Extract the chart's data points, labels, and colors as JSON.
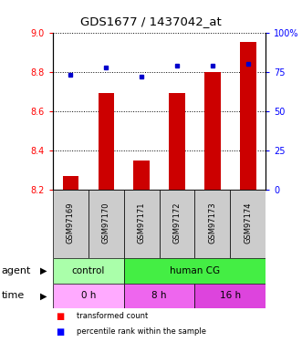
{
  "title": "GDS1677 / 1437042_at",
  "samples": [
    "GSM97169",
    "GSM97170",
    "GSM97171",
    "GSM97172",
    "GSM97173",
    "GSM97174"
  ],
  "bar_values": [
    8.27,
    8.69,
    8.35,
    8.69,
    8.8,
    8.95
  ],
  "percentile_values": [
    73,
    78,
    72,
    79,
    79,
    80
  ],
  "ylim_left": [
    8.2,
    9.0
  ],
  "ylim_right": [
    0,
    100
  ],
  "yticks_left": [
    8.2,
    8.4,
    8.6,
    8.8,
    9.0
  ],
  "yticks_right": [
    0,
    25,
    50,
    75,
    100
  ],
  "ytick_labels_right": [
    "0",
    "25",
    "50",
    "75",
    "100%"
  ],
  "bar_color": "#cc0000",
  "percentile_color": "#0000cc",
  "agent_row": [
    {
      "label": "control",
      "start": 0,
      "end": 2,
      "color": "#aaffaa"
    },
    {
      "label": "human CG",
      "start": 2,
      "end": 6,
      "color": "#44ee44"
    }
  ],
  "time_row": [
    {
      "label": "0 h",
      "start": 0,
      "end": 2,
      "color": "#ffaaff"
    },
    {
      "label": "8 h",
      "start": 2,
      "end": 4,
      "color": "#ee66ee"
    },
    {
      "label": "16 h",
      "start": 4,
      "end": 6,
      "color": "#dd44dd"
    }
  ],
  "legend_red_label": "transformed count",
  "legend_blue_label": "percentile rank within the sample",
  "sample_box_color": "#cccccc"
}
